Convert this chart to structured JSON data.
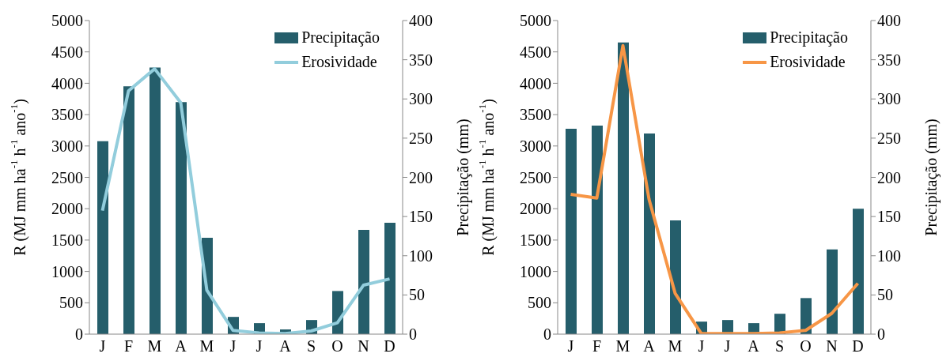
{
  "chart_data": [
    {
      "type": "bar",
      "categories": [
        "J",
        "F",
        "M",
        "A",
        "M",
        "J",
        "J",
        "A",
        "S",
        "O",
        "N",
        "D"
      ],
      "ylabel": "R (MJ mm ha$^{-1}$ h$^{-1}$ ano$^{-1}$)",
      "y2label": "Precipitação (mm)",
      "ylim": [
        0,
        5000
      ],
      "yticks": [
        0,
        500,
        1000,
        1500,
        2000,
        2500,
        3000,
        3500,
        4000,
        4500,
        5000
      ],
      "y2lim": [
        0,
        400
      ],
      "y2ticks": [
        0,
        50,
        100,
        150,
        200,
        250,
        300,
        350,
        400
      ],
      "legend": "top right",
      "marker": "none",
      "grid": false,
      "series": [
        {
          "name": "Precipitação",
          "axis": "y2",
          "color": "#255e6b",
          "values": [
            246,
            316,
            340,
            296,
            123,
            22,
            14,
            6,
            18,
            55,
            133,
            142
          ]
        },
        {
          "name": "Erosividade",
          "type": "line",
          "color": "#92cddc",
          "values": [
            1970,
            3880,
            4230,
            3690,
            700,
            60,
            20,
            10,
            50,
            180,
            780,
            880
          ]
        }
      ]
    },
    {
      "type": "bar",
      "categories": [
        "J",
        "F",
        "M",
        "A",
        "M",
        "J",
        "J",
        "A",
        "S",
        "O",
        "N",
        "D"
      ],
      "ylabel": "R (MJ mm ha$^{-1}$ h$^{-1}$ ano$^{-1}$)",
      "y2label": "Precipitação (mm)",
      "ylim": [
        0,
        5000
      ],
      "yticks": [
        0,
        500,
        1000,
        1500,
        2000,
        2500,
        3000,
        3500,
        4000,
        4500,
        5000
      ],
      "y2lim": [
        0,
        400
      ],
      "y2ticks": [
        0,
        50,
        100,
        150,
        200,
        250,
        300,
        350,
        400
      ],
      "legend": "top right",
      "marker": "none",
      "grid": false,
      "series": [
        {
          "name": "Precipitação",
          "axis": "y2",
          "color": "#255e6b",
          "values": [
            262,
            266,
            372,
            256,
            145,
            16,
            18,
            14,
            26,
            46,
            108,
            160
          ]
        },
        {
          "name": "Erosividade",
          "type": "line",
          "color": "#f79646",
          "values": [
            2230,
            2170,
            4600,
            2150,
            650,
            10,
            10,
            10,
            20,
            60,
            330,
            810
          ]
        }
      ]
    }
  ]
}
